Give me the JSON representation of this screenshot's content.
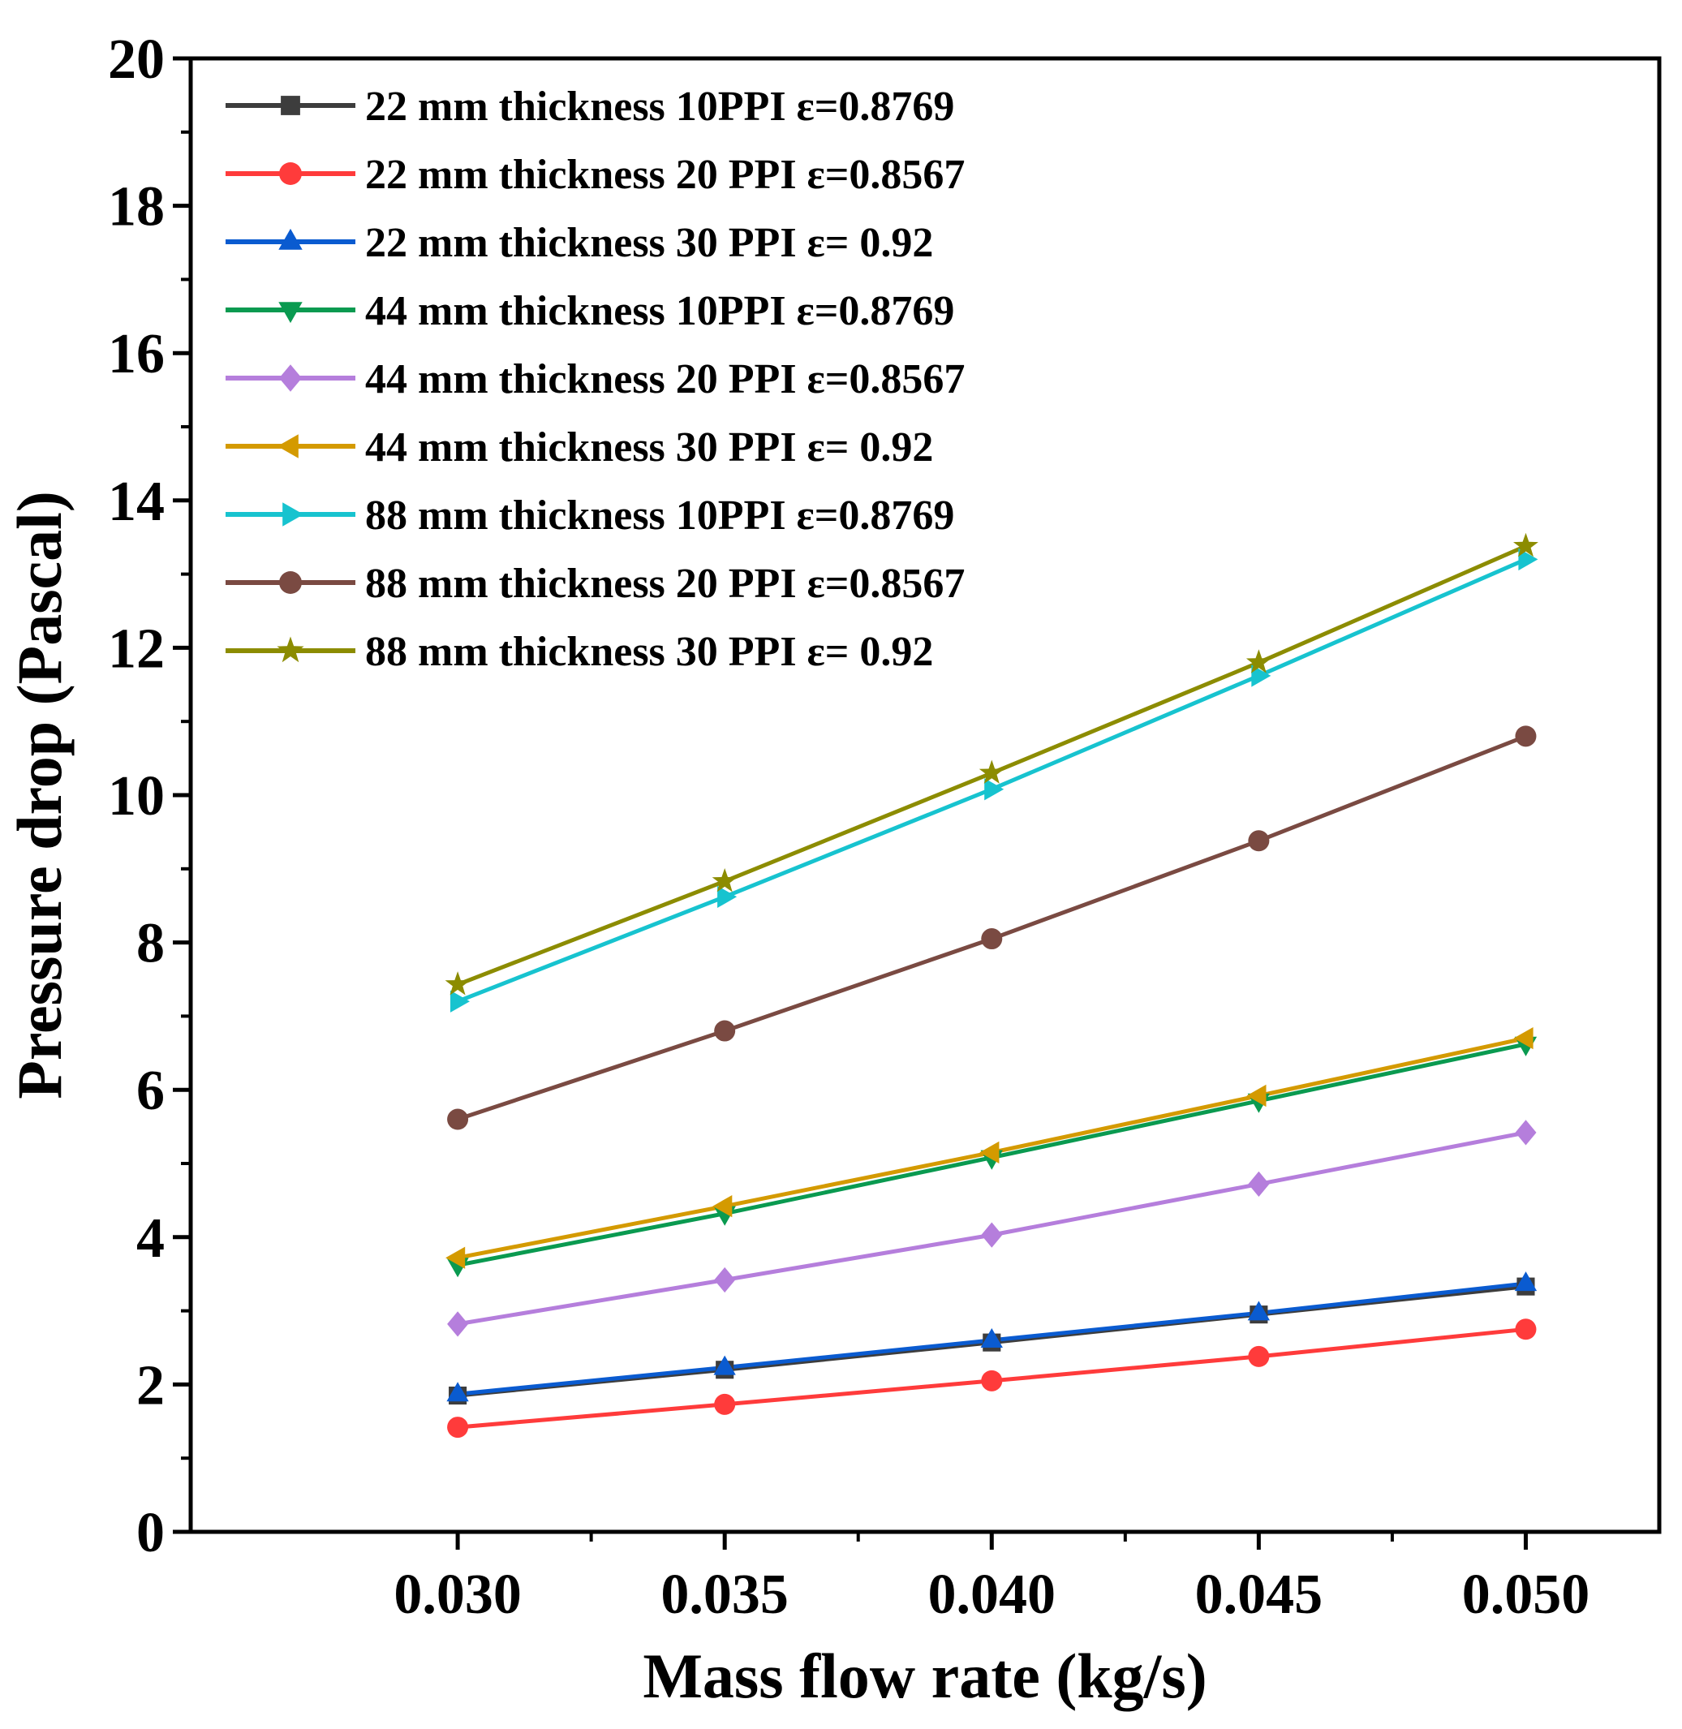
{
  "chart_data": {
    "type": "line",
    "xlabel": "Mass flow rate (kg/s)",
    "ylabel": "Pressure drop (Pascal)",
    "xlim": [
      0.025,
      0.0525
    ],
    "ylim": [
      0,
      20
    ],
    "x": [
      0.03,
      0.035,
      0.04,
      0.045,
      0.05
    ],
    "x_tick_labels": [
      "0.030",
      "0.035",
      "0.040",
      "0.045",
      "0.050"
    ],
    "y_ticks": [
      0,
      2,
      4,
      6,
      8,
      10,
      12,
      14,
      16,
      18,
      20
    ],
    "y_tick_labels": [
      "0",
      "2",
      "4",
      "6",
      "8",
      "10",
      "12",
      "14",
      "16",
      "18",
      "20"
    ],
    "legend_position": "top-left",
    "grid": false,
    "series": [
      {
        "name": "22 mm thickness 10PPI ε=0.8769",
        "color": "#3d3d3d",
        "marker": "square",
        "values": [
          1.85,
          2.2,
          2.57,
          2.95,
          3.33
        ]
      },
      {
        "name": "22 mm thickness 20 PPI ε=0.8567",
        "color": "#ff3b3b",
        "marker": "circle",
        "values": [
          1.42,
          1.73,
          2.05,
          2.38,
          2.75
        ]
      },
      {
        "name": "22 mm thickness 30 PPI ε= 0.92",
        "color": "#0a5bd0",
        "marker": "triangle-up",
        "values": [
          1.87,
          2.23,
          2.6,
          2.97,
          3.37
        ]
      },
      {
        "name": "44 mm thickness 10PPI ε=0.8769",
        "color": "#0a9a50",
        "marker": "triangle-down",
        "values": [
          3.62,
          4.32,
          5.08,
          5.85,
          6.62
        ]
      },
      {
        "name": "44 mm thickness 20 PPI ε=0.8567",
        "color": "#b57edc",
        "marker": "diamond",
        "values": [
          2.82,
          3.42,
          4.03,
          4.72,
          5.42
        ]
      },
      {
        "name": "44 mm thickness 30 PPI ε= 0.92",
        "color": "#d49a00",
        "marker": "triangle-left",
        "values": [
          3.72,
          4.42,
          5.15,
          5.92,
          6.7
        ]
      },
      {
        "name": "88 mm thickness 10PPI ε=0.8769",
        "color": "#17c3cf",
        "marker": "triangle-right",
        "values": [
          7.2,
          8.62,
          10.08,
          11.62,
          13.2
        ]
      },
      {
        "name": "88 mm thickness 20 PPI ε=0.8567",
        "color": "#7a4a42",
        "marker": "circle",
        "values": [
          5.6,
          6.8,
          8.05,
          9.38,
          10.8
        ]
      },
      {
        "name": "88 mm thickness 30 PPI ε= 0.92",
        "color": "#8c8c00",
        "marker": "star",
        "values": [
          7.43,
          8.83,
          10.3,
          11.8,
          13.38
        ]
      }
    ]
  }
}
